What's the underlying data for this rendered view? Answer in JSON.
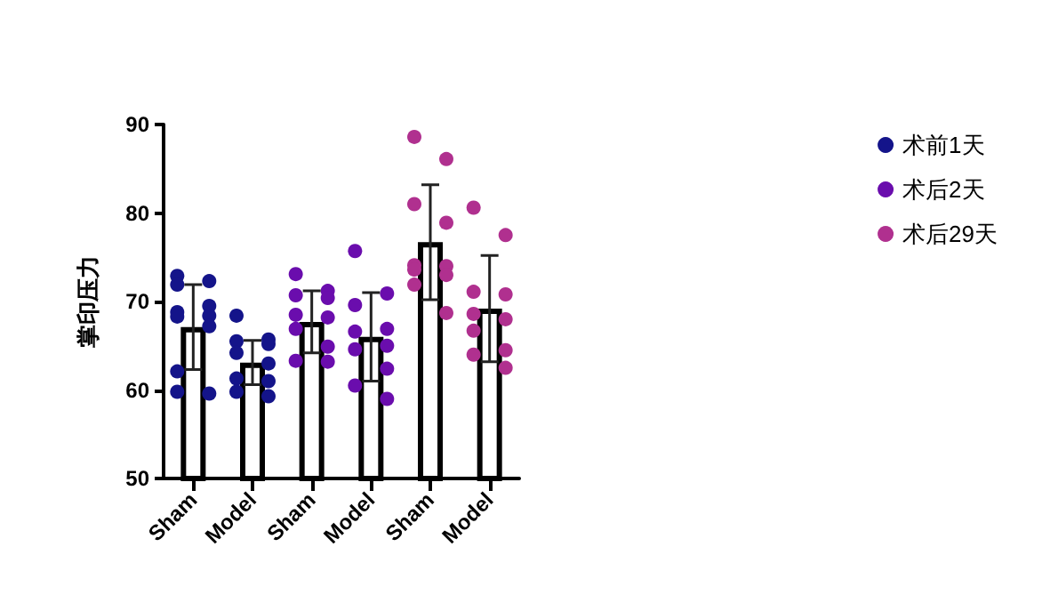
{
  "chart_data": {
    "type": "bar",
    "ylabel": "掌印压力",
    "categories": [
      "Sham",
      "Model",
      "Sham",
      "Model",
      "Sham",
      "Model"
    ],
    "series": [
      {
        "color": "#ffffff",
        "values": [
          67.1,
          63.1,
          67.7,
          66.0,
          76.7,
          69.2
        ],
        "errors": [
          4.8,
          2.5,
          3.5,
          5.0,
          6.5,
          6.0
        ]
      },
      {
        "type": "scatter",
        "name": "术前1天",
        "color": "#14148a",
        "values": [
          72.9,
          68.4,
          null,
          null,
          null,
          null
        ]
      },
      {
        "type": "scatter",
        "color": "#14148a",
        "values": [
          72.3,
          65.7,
          null,
          null,
          null,
          null
        ]
      },
      {
        "type": "scatter",
        "color": "#14148a",
        "values": [
          71.9,
          65.5,
          null,
          null,
          null,
          null
        ]
      },
      {
        "type": "scatter",
        "color": "#14148a",
        "values": [
          69.5,
          65.2,
          null,
          null,
          null,
          null
        ]
      },
      {
        "type": "scatter",
        "color": "#14148a",
        "values": [
          68.8,
          64.2,
          null,
          null,
          null,
          null
        ]
      },
      {
        "type": "scatter",
        "color": "#14148a",
        "values": [
          68.4,
          63.0,
          null,
          null,
          null,
          null
        ]
      },
      {
        "type": "scatter",
        "color": "#14148a",
        "values": [
          68.3,
          61.3,
          null,
          null,
          null,
          null
        ]
      },
      {
        "type": "scatter",
        "color": "#14148a",
        "values": [
          67.2,
          61.0,
          null,
          null,
          null,
          null
        ]
      },
      {
        "type": "scatter",
        "color": "#14148a",
        "values": [
          62.1,
          59.8,
          null,
          null,
          null,
          null
        ]
      },
      {
        "type": "scatter",
        "color": "#14148a",
        "values": [
          59.6,
          59.3,
          null,
          null,
          null,
          null
        ]
      },
      {
        "type": "scatter",
        "color": "#14148a",
        "values": [
          59.8,
          null,
          null,
          null,
          null,
          null
        ]
      },
      {
        "type": "scatter",
        "name": "术后2天",
        "color": "#6a0dad",
        "values": [
          null,
          null,
          73.1,
          75.7,
          null,
          null
        ]
      },
      {
        "type": "scatter",
        "color": "#6a0dad",
        "values": [
          null,
          null,
          71.2,
          70.9,
          null,
          null
        ]
      },
      {
        "type": "scatter",
        "color": "#6a0dad",
        "values": [
          null,
          null,
          70.7,
          69.6,
          null,
          null
        ]
      },
      {
        "type": "scatter",
        "color": "#6a0dad",
        "values": [
          null,
          null,
          70.4,
          66.9,
          null,
          null
        ]
      },
      {
        "type": "scatter",
        "color": "#6a0dad",
        "values": [
          null,
          null,
          68.5,
          66.6,
          null,
          null
        ]
      },
      {
        "type": "scatter",
        "color": "#6a0dad",
        "values": [
          null,
          null,
          68.2,
          65.0,
          null,
          null
        ]
      },
      {
        "type": "scatter",
        "color": "#6a0dad",
        "values": [
          null,
          null,
          66.9,
          64.6,
          null,
          null
        ]
      },
      {
        "type": "scatter",
        "color": "#6a0dad",
        "values": [
          null,
          null,
          64.9,
          62.4,
          null,
          null
        ]
      },
      {
        "type": "scatter",
        "color": "#6a0dad",
        "values": [
          null,
          null,
          63.3,
          60.5,
          null,
          null
        ]
      },
      {
        "type": "scatter",
        "color": "#6a0dad",
        "values": [
          null,
          null,
          63.2,
          59.0,
          null,
          null
        ]
      },
      {
        "type": "scatter",
        "name": "术后29天",
        "color": "#b0308f",
        "values": [
          null,
          null,
          null,
          null,
          88.6,
          80.6
        ]
      },
      {
        "type": "scatter",
        "color": "#b0308f",
        "values": [
          null,
          null,
          null,
          null,
          86.1,
          77.5
        ]
      },
      {
        "type": "scatter",
        "color": "#b0308f",
        "values": [
          null,
          null,
          null,
          null,
          81.0,
          71.1
        ]
      },
      {
        "type": "scatter",
        "color": "#b0308f",
        "values": [
          null,
          null,
          null,
          null,
          78.9,
          70.8
        ]
      },
      {
        "type": "scatter",
        "color": "#b0308f",
        "values": [
          null,
          null,
          null,
          null,
          74.1,
          68.6
        ]
      },
      {
        "type": "scatter",
        "color": "#b0308f",
        "values": [
          null,
          null,
          null,
          null,
          74.0,
          68.0
        ]
      },
      {
        "type": "scatter",
        "color": "#b0308f",
        "values": [
          null,
          null,
          null,
          null,
          73.6,
          66.7
        ]
      },
      {
        "type": "scatter",
        "color": "#b0308f",
        "values": [
          null,
          null,
          null,
          null,
          73.0,
          64.5
        ]
      },
      {
        "type": "scatter",
        "color": "#b0308f",
        "values": [
          null,
          null,
          null,
          null,
          71.9,
          64.0
        ]
      },
      {
        "type": "scatter",
        "color": "#b0308f",
        "values": [
          null,
          null,
          null,
          null,
          68.7,
          62.5
        ]
      }
    ],
    "ylim": [
      50,
      90
    ],
    "yticks": [
      50,
      60,
      70,
      80,
      90
    ],
    "grid": false,
    "legend": "right",
    "marker": "circle"
  }
}
